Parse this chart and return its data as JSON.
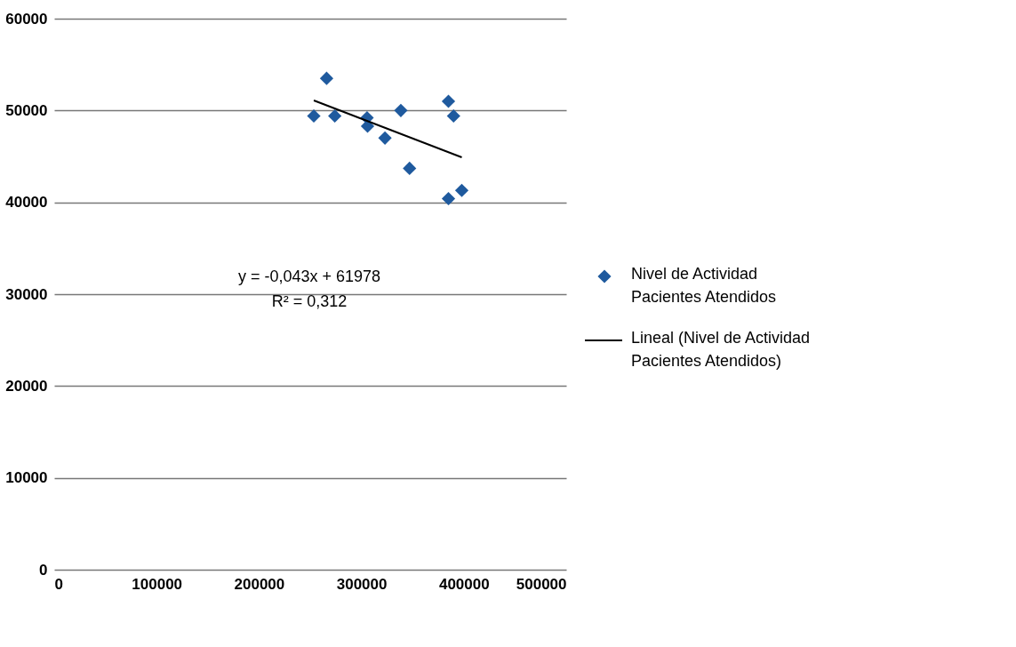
{
  "chart_data": {
    "type": "scatter",
    "xlim": [
      0,
      500000
    ],
    "ylim": [
      0,
      60000
    ],
    "xticks": [
      0,
      100000,
      200000,
      300000,
      400000,
      500000
    ],
    "yticks": [
      0,
      10000,
      20000,
      30000,
      40000,
      50000,
      60000
    ],
    "grid": "y",
    "legend": "right",
    "series": [
      {
        "name": "Nivel de Actividad Pacientes Atendidos",
        "color": "#1f5a9e",
        "marker": "diamond",
        "x": [
          253500,
          266000,
          274000,
          305500,
          306000,
          323000,
          338500,
          347000,
          385000,
          390000,
          385000,
          398000
        ],
        "values": [
          49400,
          53500,
          49400,
          49200,
          48300,
          47000,
          50000,
          43700,
          51000,
          49400,
          40400,
          41300
        ]
      },
      {
        "name": "Lineal (Nivel de Actividad Pacientes Atendidos)",
        "type": "line",
        "marker": "none",
        "line_style": "solid",
        "color": "#000000",
        "x": [
          253500,
          398000
        ],
        "values": [
          51100,
          44900
        ]
      }
    ],
    "annotations": [
      "y = -0,043x + 61978",
      "R² = 0,312"
    ]
  }
}
